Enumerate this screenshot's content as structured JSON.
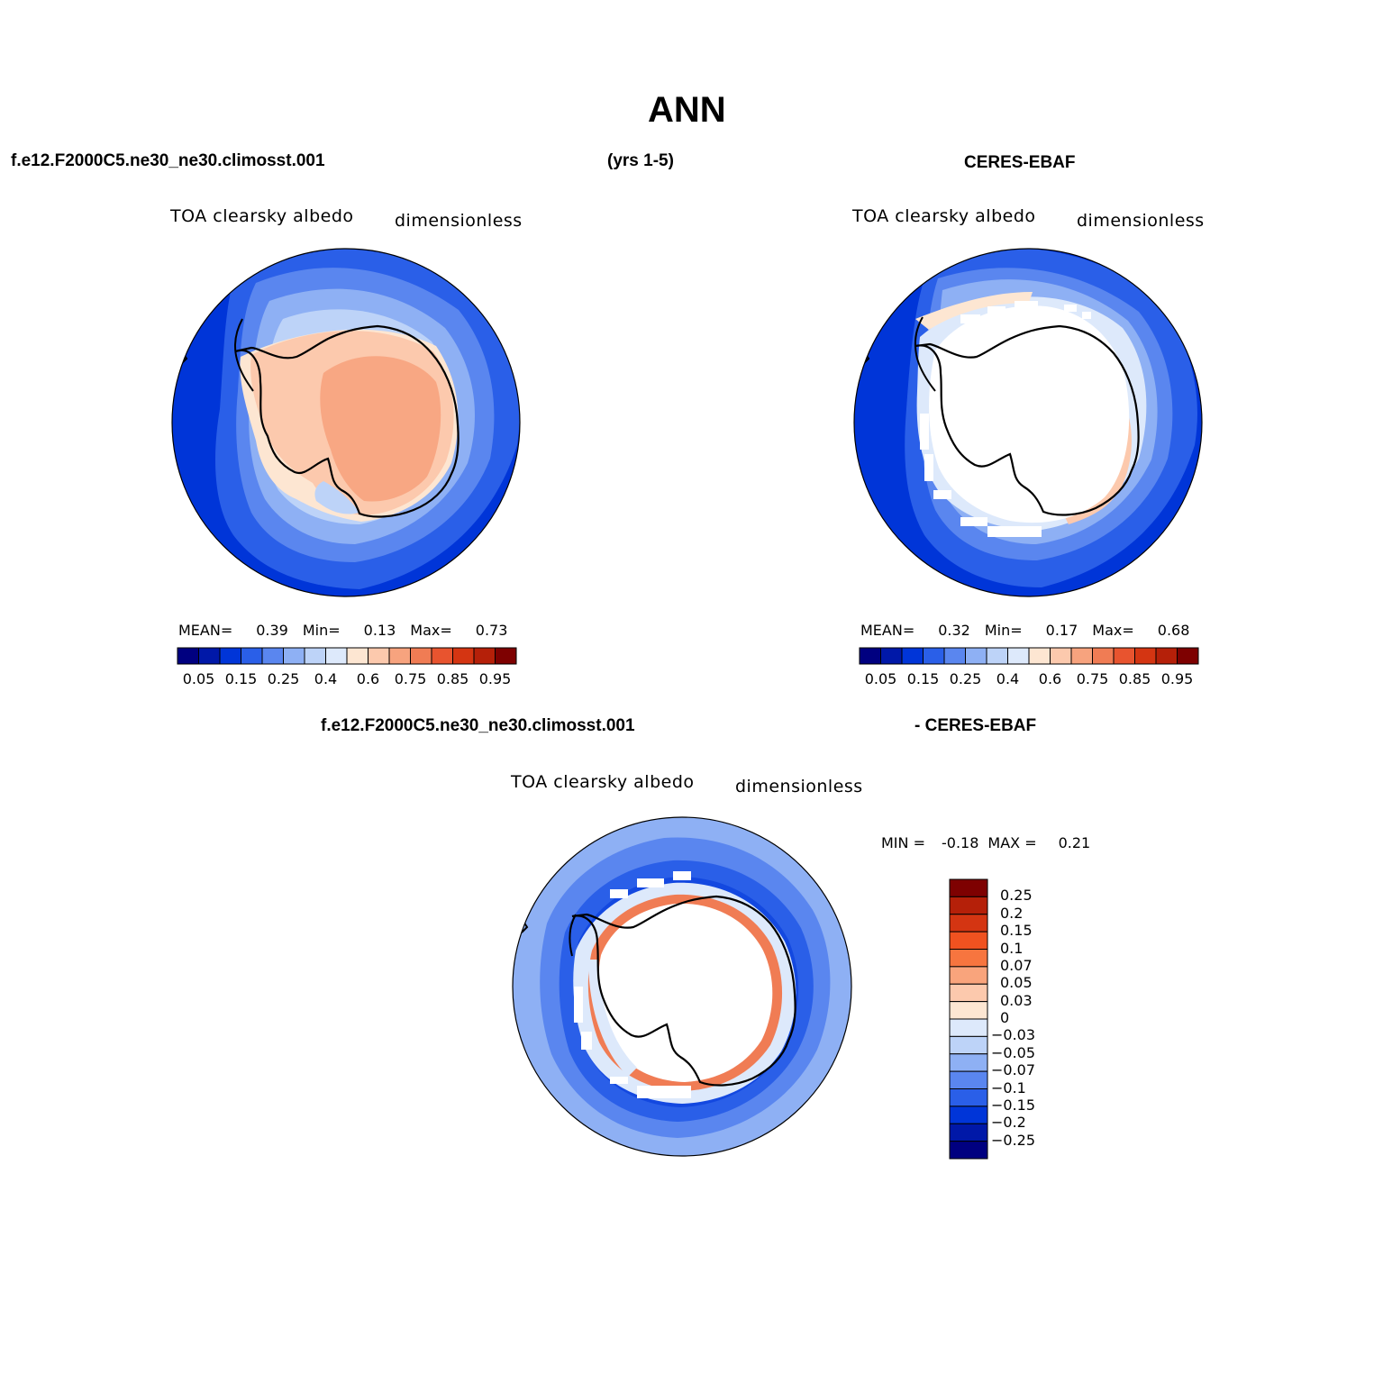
{
  "title": "ANN",
  "header": {
    "case": "f.e12.F2000C5.ne30_ne30.climosst.001",
    "years": "(yrs 1-5)",
    "obs": "CERES-EBAF"
  },
  "diff_header": {
    "case": "f.e12.F2000C5.ne30_ne30.climosst.001",
    "obs": "- CERES-EBAF"
  },
  "panels": [
    {
      "id": "model",
      "variable": "TOA clearsky albedo",
      "units": "dimensionless",
      "stats": {
        "mean_label": "MEAN=",
        "mean": "0.39",
        "min_label": "Min=",
        "min": "0.13",
        "max_label": "Max=",
        "max": "0.73"
      }
    },
    {
      "id": "obs",
      "variable": "TOA clearsky albedo",
      "units": "dimensionless",
      "stats": {
        "mean_label": "MEAN=",
        "mean": "0.32",
        "min_label": "Min=",
        "min": "0.17",
        "max_label": "Max=",
        "max": "0.68"
      }
    },
    {
      "id": "diff",
      "variable": "TOA clearsky albedo",
      "units": "dimensionless",
      "stats": {
        "min_label": "MIN =",
        "min": "-0.18",
        "max_label": "MAX =",
        "max": "0.21"
      }
    }
  ],
  "colorbar_abs": {
    "colors": [
      "#000080",
      "#0018a8",
      "#0035d8",
      "#2a5fe8",
      "#5a86ef",
      "#8eb0f4",
      "#bdd3f8",
      "#dde9fb",
      "#fde6d2",
      "#fcc9ad",
      "#f7a37e",
      "#f07c54",
      "#e8542f",
      "#d43512",
      "#b52009",
      "#7e0101"
    ],
    "tick_labels": [
      "0.05",
      "0.15",
      "0.25",
      "0.4",
      "0.6",
      "0.75",
      "0.85",
      "0.95"
    ]
  },
  "colorbar_diff": {
    "colors": [
      "#7e0101",
      "#b52009",
      "#d43512",
      "#f05220",
      "#f7753f",
      "#f9a47c",
      "#fcc9ad",
      "#fde6d2",
      "#dde9fb",
      "#bdd3f8",
      "#8eb0f4",
      "#5a86ef",
      "#2a5fe8",
      "#0035d8",
      "#0018a8",
      "#000080"
    ],
    "tick_labels": [
      "0.25",
      "0.2",
      "0.15",
      "0.1",
      "0.07",
      "0.05",
      "0.03",
      "0",
      "−0.03",
      "−0.05",
      "−0.07",
      "−0.1",
      "−0.15",
      "−0.2",
      "−0.25"
    ]
  }
}
